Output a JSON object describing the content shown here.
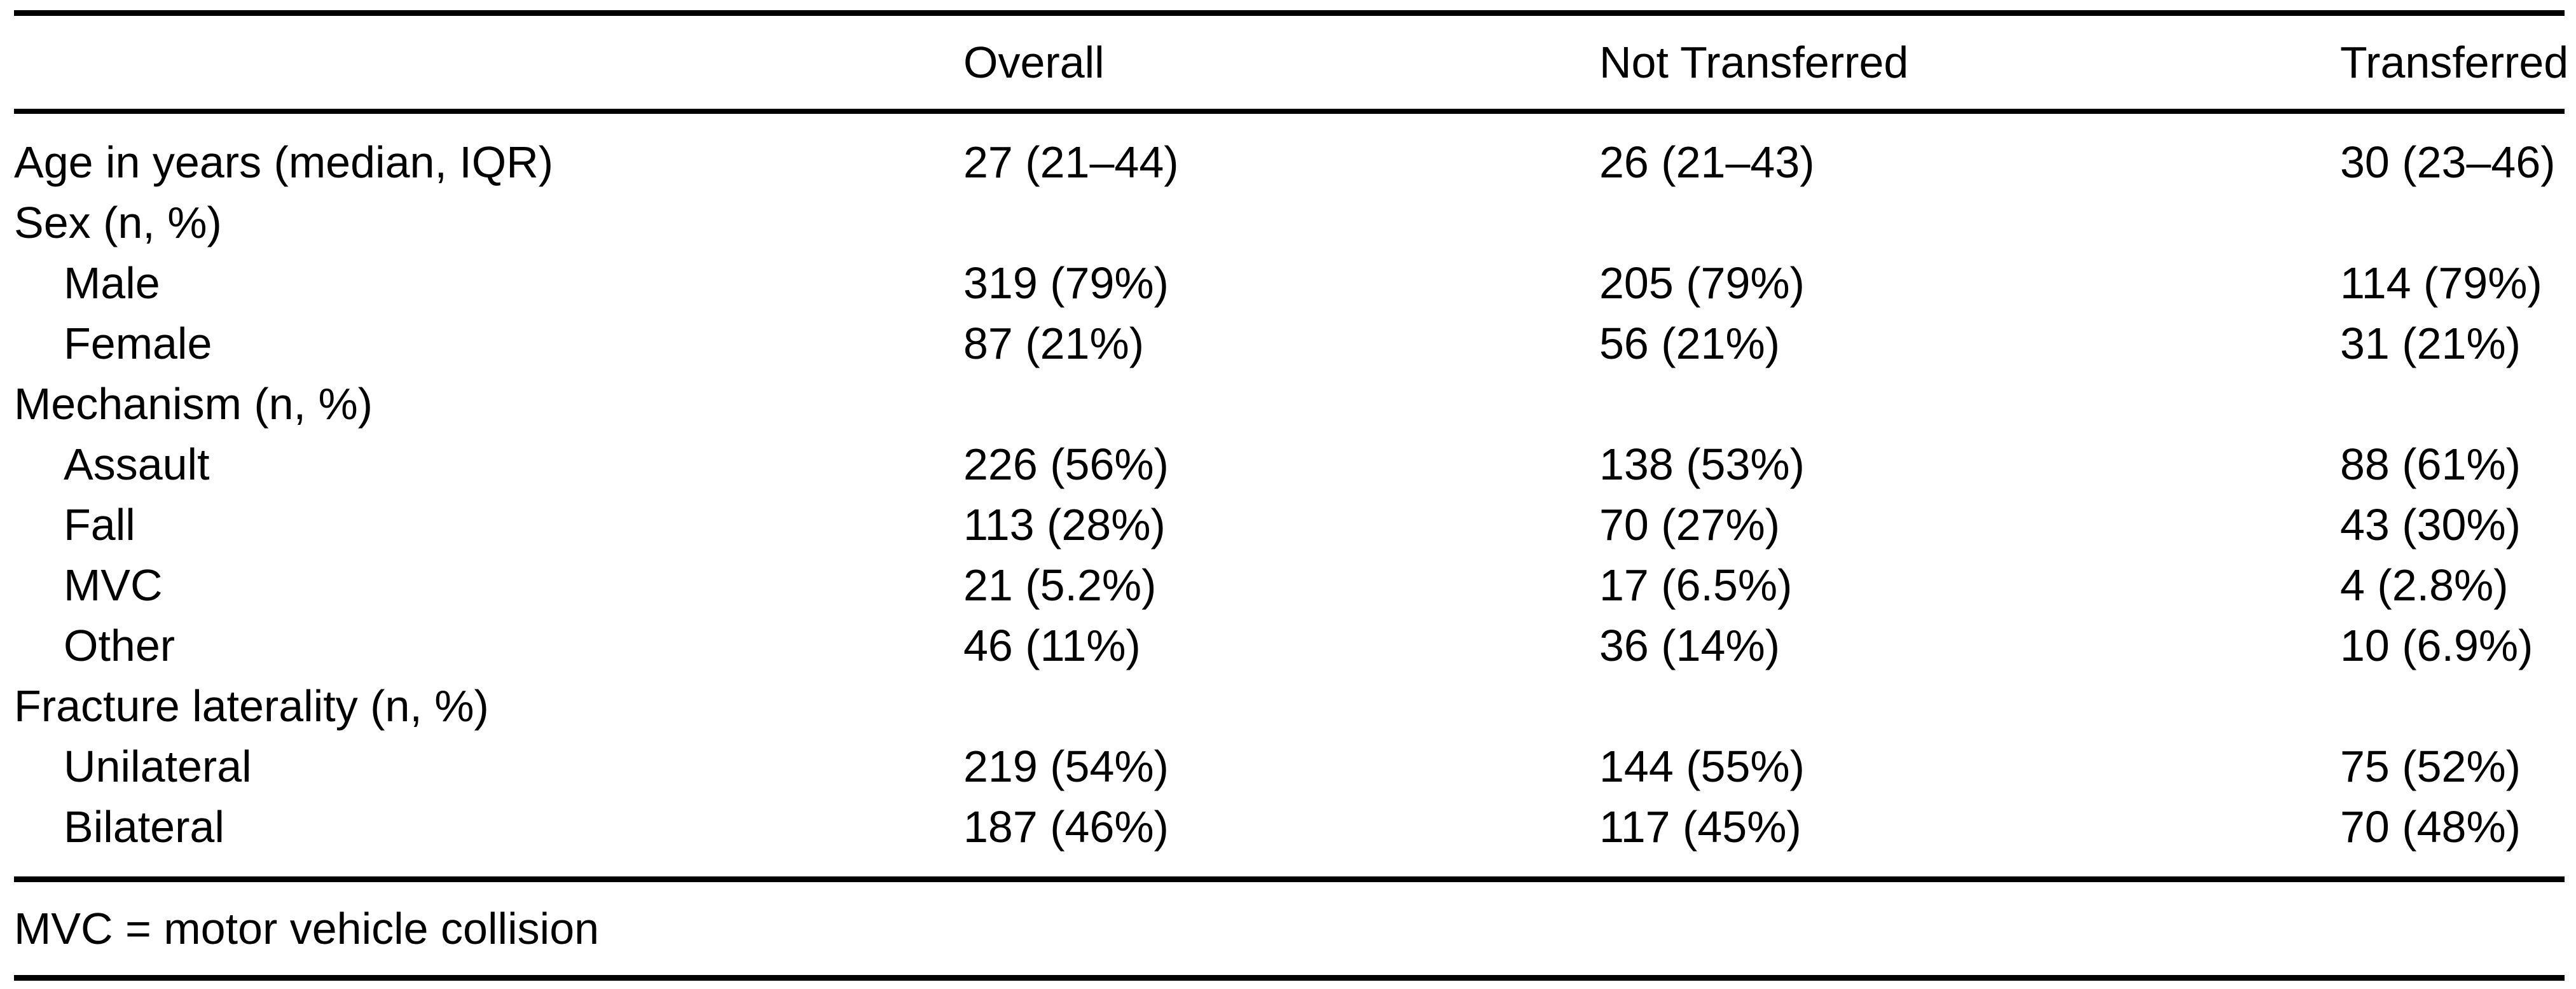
{
  "table": {
    "header": {
      "overall": "Overall",
      "not_transferred": "Not Transferred",
      "transferred": "Transferred"
    },
    "rows": [
      {
        "label": "Age in years (median, IQR)",
        "indent": false,
        "overall": "27 (21–44)",
        "not_transferred": "26 (21–43)",
        "transferred": "30 (23–46)"
      },
      {
        "label": "Sex (n, %)",
        "indent": false
      },
      {
        "label": "Male",
        "indent": true,
        "overall": "319 (79%)",
        "not_transferred": "205 (79%)",
        "transferred": "114 (79%)"
      },
      {
        "label": "Female",
        "indent": true,
        "overall": "87 (21%)",
        "not_transferred": "56 (21%)",
        "transferred": "31 (21%)"
      },
      {
        "label": "Mechanism (n, %)",
        "indent": false
      },
      {
        "label": "Assault",
        "indent": true,
        "overall": "226 (56%)",
        "not_transferred": "138 (53%)",
        "transferred": "88 (61%)"
      },
      {
        "label": "Fall",
        "indent": true,
        "overall": "113 (28%)",
        "not_transferred": "70 (27%)",
        "transferred": "43 (30%)"
      },
      {
        "label": "MVC",
        "indent": true,
        "overall": "21 (5.2%)",
        "not_transferred": "17 (6.5%)",
        "transferred": "4 (2.8%)"
      },
      {
        "label": "Other",
        "indent": true,
        "overall": "46 (11%)",
        "not_transferred": "36 (14%)",
        "transferred": "10 (6.9%)"
      },
      {
        "label": "Fracture laterality (n, %)",
        "indent": false
      },
      {
        "label": "Unilateral",
        "indent": true,
        "overall": "219 (54%)",
        "not_transferred": "144 (55%)",
        "transferred": "75 (52%)"
      },
      {
        "label": "Bilateral",
        "indent": true,
        "overall": "187 (46%)",
        "not_transferred": "117 (45%)",
        "transferred": "70 (48%)"
      }
    ],
    "footnote": "MVC = motor vehicle collision"
  }
}
